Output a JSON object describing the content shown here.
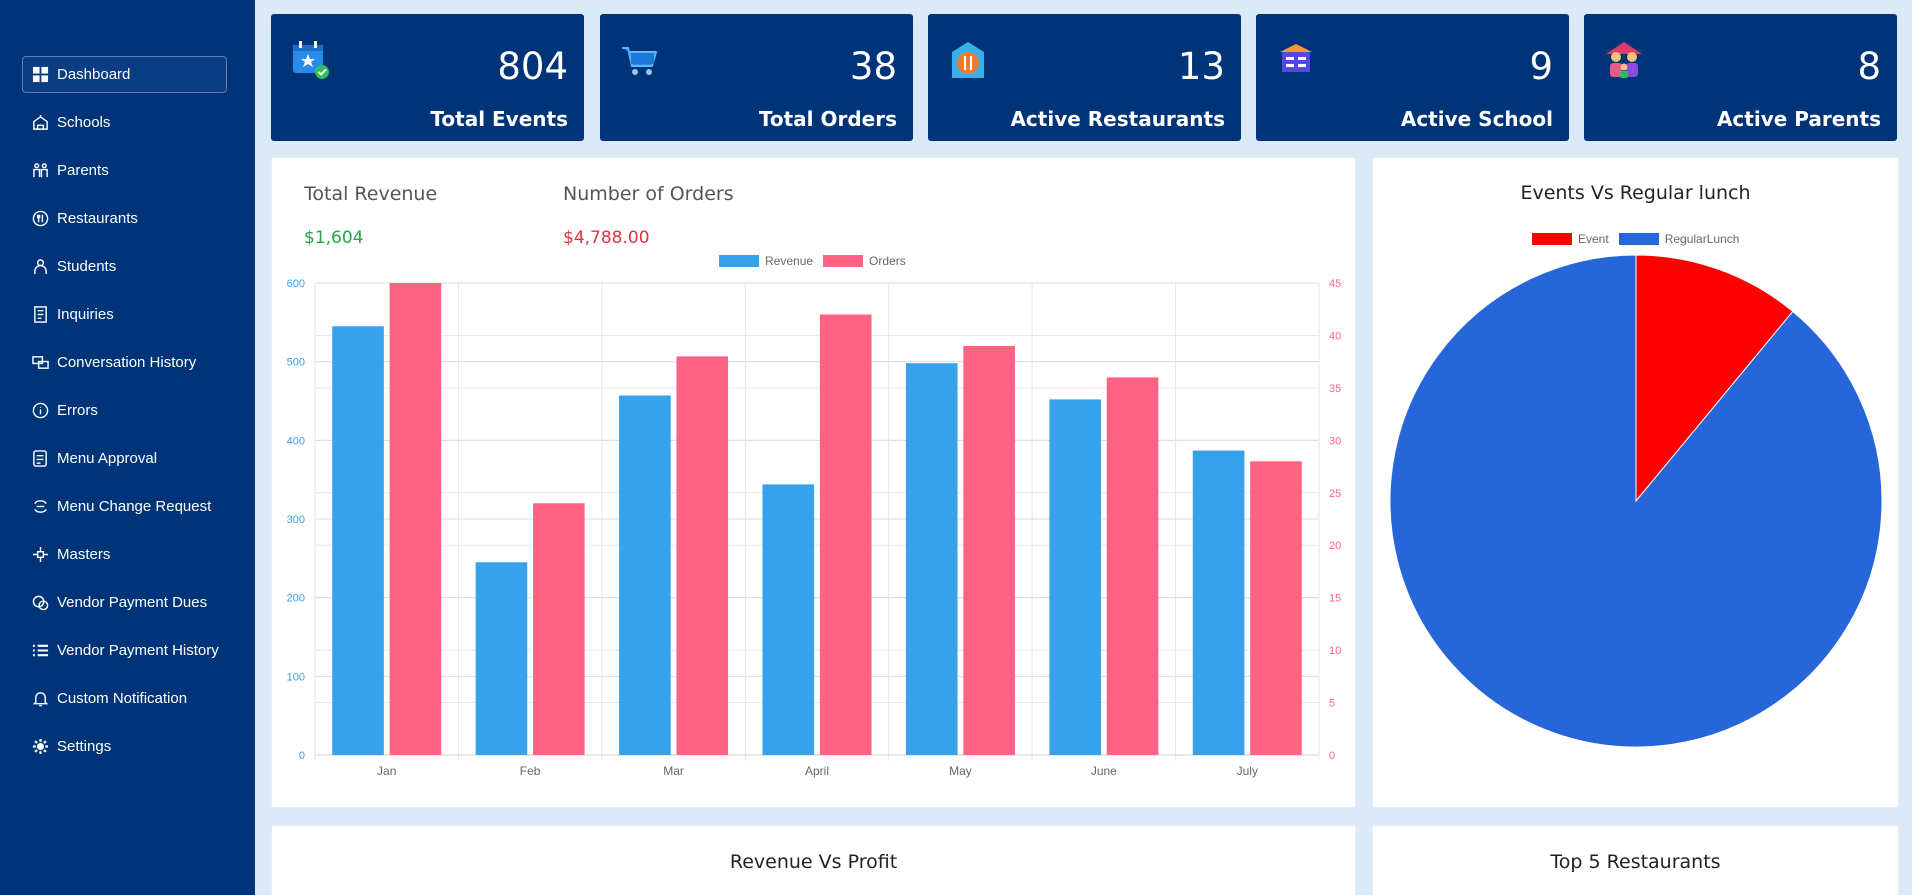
{
  "sidebar": {
    "items": [
      {
        "label": "Dashboard",
        "icon": "dashboard-icon",
        "active": true
      },
      {
        "label": "Schools",
        "icon": "school-icon"
      },
      {
        "label": "Parents",
        "icon": "parents-icon"
      },
      {
        "label": "Restaurants",
        "icon": "restaurant-icon"
      },
      {
        "label": "Students",
        "icon": "student-icon"
      },
      {
        "label": "Inquiries",
        "icon": "inquiries-icon"
      },
      {
        "label": "Conversation History",
        "icon": "conversation-icon"
      },
      {
        "label": "Errors",
        "icon": "error-info-icon"
      },
      {
        "label": "Menu Approval",
        "icon": "menu-approval-icon"
      },
      {
        "label": "Menu Change Request",
        "icon": "change-request-icon"
      },
      {
        "label": "Masters",
        "icon": "masters-icon"
      },
      {
        "label": "Vendor Payment Dues",
        "icon": "payment-dues-icon"
      },
      {
        "label": "Vendor Payment History",
        "icon": "list-icon"
      },
      {
        "label": "Custom Notification",
        "icon": "bell-icon"
      },
      {
        "label": "Settings",
        "icon": "gear-icon"
      }
    ]
  },
  "stats": [
    {
      "value": "804",
      "label": "Total Events",
      "icon": "calendar-star-icon"
    },
    {
      "value": "38",
      "label": "Total Orders",
      "icon": "cart-icon"
    },
    {
      "value": "13",
      "label": "Active Restaurants",
      "icon": "restaurant-building-icon"
    },
    {
      "value": "9",
      "label": "Active School",
      "icon": "school-building-icon"
    },
    {
      "value": "8",
      "label": "Active Parents",
      "icon": "family-icon"
    }
  ],
  "revenue_panel": {
    "total_revenue_label": "Total Revenue",
    "total_revenue_value": "$1,604",
    "orders_label": "Number of Orders",
    "orders_value": "$4,788.00"
  },
  "pie_panel": {
    "title": "Events Vs Regular lunch"
  },
  "bottom_panels": {
    "left_title": "Revenue Vs Profit",
    "right_title": "Top 5 Restaurants"
  },
  "colors": {
    "sidebar": "#003478",
    "revenue": "#36a2eb",
    "orders": "#ff6384",
    "positive": "#28a745",
    "negative": "#dc3545",
    "event": "#ff0000",
    "regular": "#2666d9"
  },
  "chart_data": [
    {
      "type": "bar",
      "categories": [
        "Jan",
        "Feb",
        "Mar",
        "April",
        "May",
        "June",
        "July"
      ],
      "series": [
        {
          "name": "Revenue",
          "axis": "left",
          "values": [
            545,
            245,
            457,
            344,
            498,
            452,
            387
          ]
        },
        {
          "name": "Orders",
          "axis": "right",
          "values": [
            45,
            24,
            38,
            42,
            39,
            36,
            28
          ]
        }
      ],
      "y_left": {
        "min": 0,
        "max": 600,
        "ticks": [
          0,
          100,
          200,
          300,
          400,
          500,
          600
        ]
      },
      "y_right": {
        "min": 0,
        "max": 45,
        "ticks": [
          0,
          5,
          10,
          15,
          20,
          25,
          30,
          35,
          40,
          45
        ]
      },
      "legend": "top",
      "grid": true
    },
    {
      "type": "pie",
      "labels": [
        "Event",
        "RegularLunch"
      ],
      "values": [
        11,
        89
      ],
      "legend": "top"
    }
  ]
}
